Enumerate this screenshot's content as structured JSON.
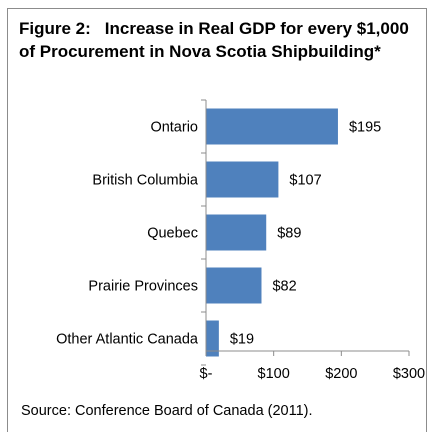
{
  "chart_data": {
    "type": "bar",
    "orientation": "horizontal",
    "title_number": "Figure 2:",
    "title": "Increase in Real GDP for every $1,000 of Procurement in Nova Scotia Shipbuilding*",
    "categories": [
      "Ontario",
      "British Columbia",
      "Quebec",
      "Prairie Provinces",
      "Other Atlantic Canada"
    ],
    "values": [
      195,
      107,
      89,
      82,
      19
    ],
    "value_labels": [
      "$195",
      "$107",
      "$89",
      "$82",
      "$19"
    ],
    "xlim": [
      0,
      300
    ],
    "x_ticks": [
      0,
      100,
      200,
      300
    ],
    "x_tick_labels": [
      "$-",
      "$100",
      "$200",
      "$300"
    ],
    "grid": false,
    "legend": "none",
    "bar_color": "#4f81bd",
    "source": "Source: Conference Board of Canada (2011)."
  }
}
